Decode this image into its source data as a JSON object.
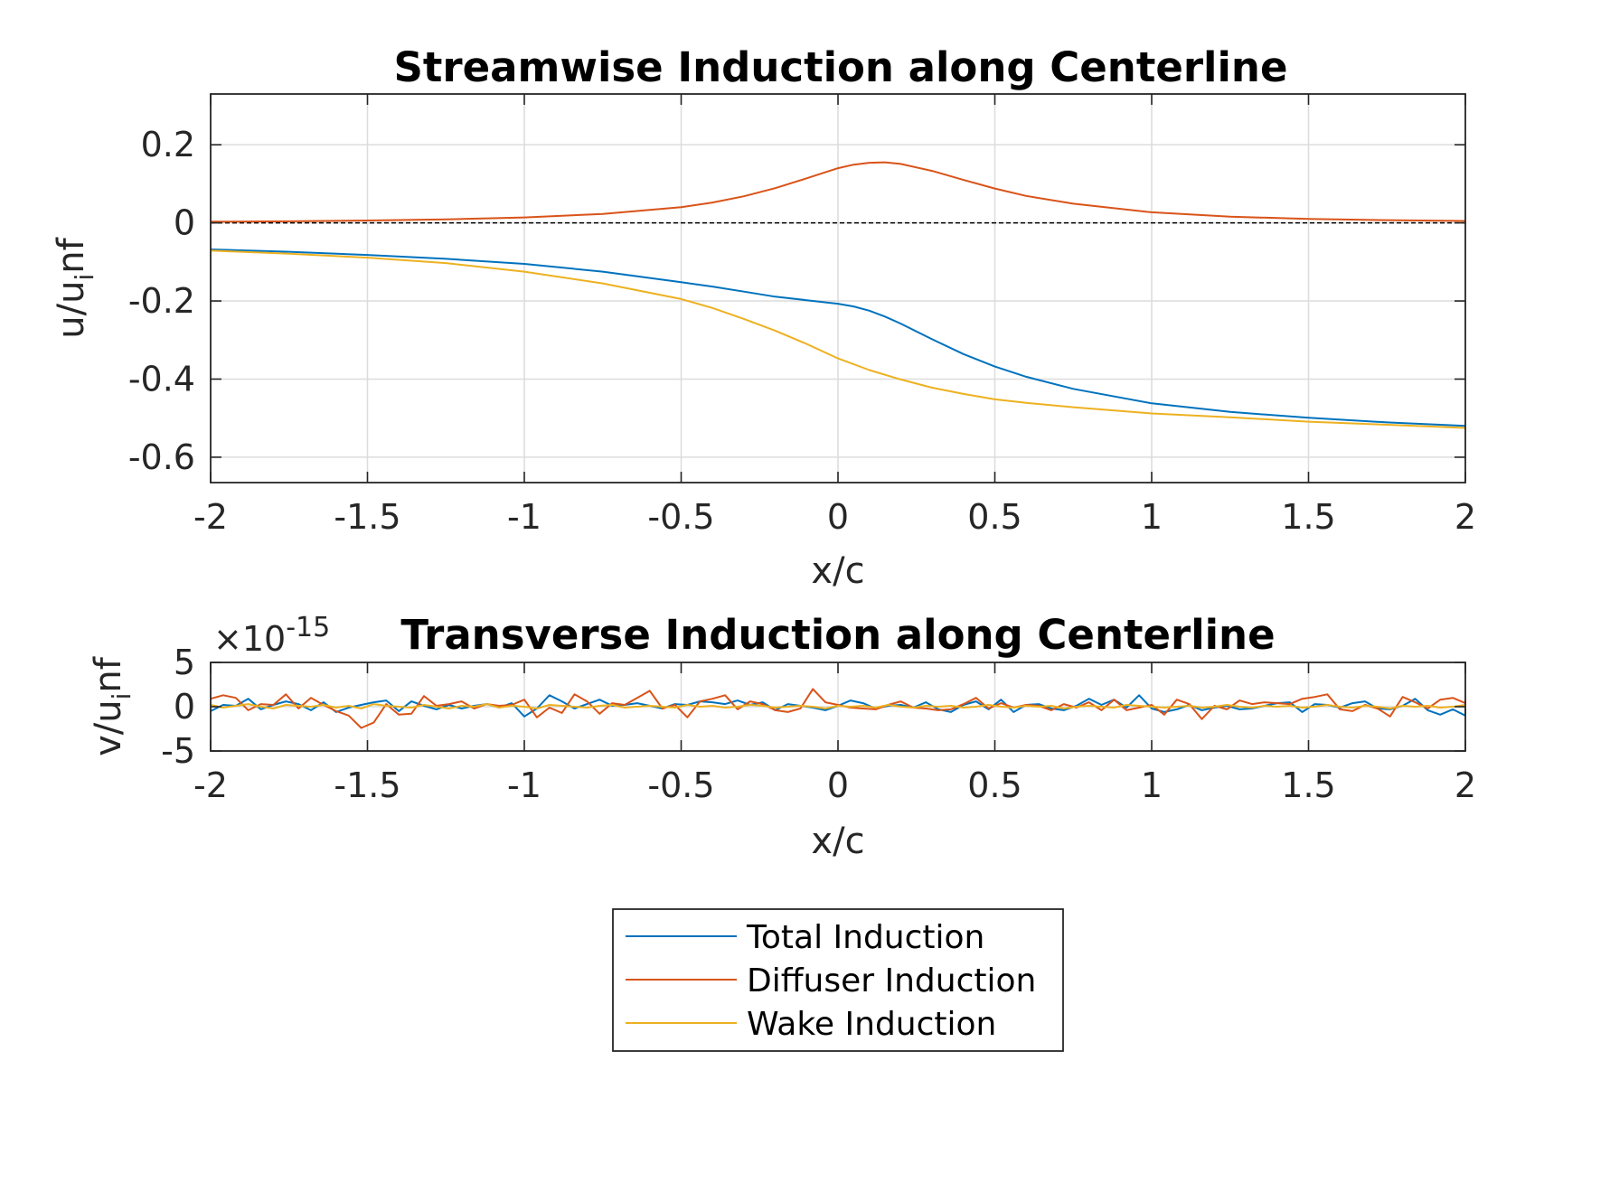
{
  "colors": {
    "total": "#0072BD",
    "diffuser": "#D95319",
    "wake": "#EDB120",
    "grid": "#DCDCDC",
    "axes": "#262626"
  },
  "legend": {
    "placement": "bottom-center",
    "entries": [
      "Total Induction",
      "Diffuser Induction",
      "Wake Induction"
    ]
  },
  "chart_data": [
    {
      "type": "line",
      "title": "Streamwise Induction along Centerline",
      "xlabel": "x/c",
      "ylabel_main": "u/u",
      "ylabel_sub": "i",
      "ylabel_end": "nf",
      "xlim": [
        -2,
        2
      ],
      "ylim": [
        -0.665,
        0.33
      ],
      "xticks": [
        -2,
        -1.5,
        -1,
        -0.5,
        0,
        0.5,
        1,
        1.5,
        2
      ],
      "xtick_labels": [
        "-2",
        "-1.5",
        "-1",
        "-0.5",
        "0",
        "0.5",
        "1",
        "1.5",
        "2"
      ],
      "yticks": [
        -0.6,
        -0.4,
        -0.2,
        0,
        0.2
      ],
      "ytick_labels": [
        "-0.6",
        "-0.4",
        "-0.2",
        "0",
        "0.2"
      ],
      "grid": true,
      "reference_line": 0,
      "series": [
        {
          "name": "Total Induction",
          "color_key": "total",
          "x": [
            -2,
            -1.75,
            -1.5,
            -1.25,
            -1,
            -0.75,
            -0.5,
            -0.4,
            -0.3,
            -0.2,
            -0.1,
            0,
            0.05,
            0.1,
            0.15,
            0.2,
            0.3,
            0.4,
            0.5,
            0.6,
            0.75,
            1,
            1.25,
            1.5,
            1.75,
            2
          ],
          "y": [
            -0.068,
            -0.074,
            -0.082,
            -0.092,
            -0.105,
            -0.125,
            -0.152,
            -0.163,
            -0.176,
            -0.189,
            -0.198,
            -0.207,
            -0.214,
            -0.225,
            -0.24,
            -0.258,
            -0.298,
            -0.336,
            -0.368,
            -0.394,
            -0.425,
            -0.462,
            -0.484,
            -0.499,
            -0.511,
            -0.52
          ]
        },
        {
          "name": "Diffuser Induction",
          "color_key": "diffuser",
          "x": [
            -2,
            -1.75,
            -1.5,
            -1.25,
            -1,
            -0.75,
            -0.5,
            -0.4,
            -0.3,
            -0.2,
            -0.1,
            0,
            0.05,
            0.1,
            0.15,
            0.2,
            0.3,
            0.4,
            0.5,
            0.6,
            0.75,
            1,
            1.25,
            1.5,
            1.75,
            2
          ],
          "y": [
            0.003,
            0.004,
            0.006,
            0.009,
            0.014,
            0.023,
            0.04,
            0.052,
            0.068,
            0.089,
            0.114,
            0.14,
            0.149,
            0.154,
            0.155,
            0.151,
            0.133,
            0.11,
            0.088,
            0.069,
            0.049,
            0.027,
            0.016,
            0.01,
            0.007,
            0.005
          ]
        },
        {
          "name": "Wake Induction",
          "color_key": "wake",
          "x": [
            -2,
            -1.75,
            -1.5,
            -1.25,
            -1,
            -0.75,
            -0.5,
            -0.4,
            -0.3,
            -0.2,
            -0.1,
            0,
            0.1,
            0.2,
            0.3,
            0.4,
            0.5,
            0.6,
            0.75,
            1,
            1.25,
            1.5,
            1.75,
            2
          ],
          "y": [
            -0.071,
            -0.079,
            -0.089,
            -0.103,
            -0.125,
            -0.155,
            -0.195,
            -0.218,
            -0.246,
            -0.276,
            -0.31,
            -0.347,
            -0.377,
            -0.401,
            -0.422,
            -0.438,
            -0.452,
            -0.461,
            -0.472,
            -0.488,
            -0.498,
            -0.509,
            -0.517,
            -0.525
          ]
        }
      ]
    },
    {
      "type": "line",
      "title": "Transverse Induction along Centerline",
      "xlabel": "x/c",
      "ylabel_main": "v/u",
      "ylabel_sub": "i",
      "ylabel_end": "nf",
      "exponent_label": "×10",
      "exponent_power": "-15",
      "xlim": [
        -2,
        2
      ],
      "ylim": [
        -5,
        5
      ],
      "xticks": [
        -2,
        -1.5,
        -1,
        -0.5,
        0,
        0.5,
        1,
        1.5,
        2
      ],
      "xtick_labels": [
        "-2",
        "-1.5",
        "-1",
        "-0.5",
        "0",
        "0.5",
        "1",
        "1.5",
        "2"
      ],
      "yticks": [
        -5,
        0,
        5
      ],
      "ytick_labels": [
        "-5",
        "0",
        "5"
      ],
      "grid": true,
      "x_step": 0.04,
      "series": [
        {
          "name": "Total Induction",
          "color_key": "total",
          "y": [
            -0.5,
            0.2,
            0.1,
            0.9,
            -0.3,
            0.2,
            0.6,
            0.3,
            -0.4,
            0.5,
            -0.6,
            -0.1,
            0.2,
            0.5,
            0.7,
            -0.5,
            0.6,
            0.1,
            -0.3,
            0.2,
            -0.2,
            0.1,
            0.3,
            -0.1,
            0.4,
            -1.1,
            -0.2,
            1.3,
            0.6,
            -0.2,
            0.3,
            0.8,
            0.1,
            0.2,
            0.4,
            0.1,
            -0.2,
            0.3,
            0.2,
            0.6,
            0.5,
            0.3,
            0.7,
            0.2,
            0.5,
            -0.4,
            0.3,
            0.1,
            -0.1,
            -0.4,
            0.1,
            0.7,
            0.4,
            -0.2,
            0.1,
            0.2,
            -0.1,
            0.5,
            -0.3,
            -0.6,
            0.2,
            0.6,
            -0.3,
            0.8,
            -0.6,
            0.2,
            0.3,
            -0.2,
            -0.4,
            0.1,
            0.9,
            0.2,
            0.8,
            -0.1,
            1.3,
            -0.2,
            -0.6,
            -0.3,
            0.2,
            -0.4,
            -0.1,
            0.1,
            -0.3,
            -0.2,
            0.1,
            0.4,
            0.5,
            -0.6,
            0.3,
            0.2,
            -0.1,
            0.4,
            0.6,
            -0.2,
            -0.3,
            0.1,
            0.9,
            -0.4,
            -0.9,
            -0.3,
            -1.0,
            0.1,
            0.5,
            -0.1
          ]
        },
        {
          "name": "Diffuser Induction",
          "color_key": "diffuser",
          "y": [
            0.9,
            1.3,
            1.0,
            -0.4,
            0.3,
            0.2,
            1.4,
            -0.2,
            1.0,
            0.2,
            -0.5,
            -1.0,
            -2.4,
            -1.8,
            0.3,
            -0.9,
            -0.8,
            1.2,
            0.1,
            0.3,
            0.6,
            -0.2,
            0.3,
            0.1,
            0.2,
            0.8,
            -1.2,
            -0.1,
            -0.7,
            1.4,
            0.6,
            -0.8,
            0.4,
            0.2,
            1.0,
            1.8,
            -0.2,
            0.2,
            -1.2,
            0.6,
            0.9,
            1.3,
            -0.3,
            0.6,
            0.3,
            -0.4,
            -0.6,
            -0.2,
            2.0,
            0.5,
            0.2,
            -0.1,
            -0.2,
            -0.3,
            0.2,
            0.6,
            -0.1,
            -0.2,
            -0.4,
            -0.3,
            0.3,
            1.0,
            -0.2,
            0.4,
            -0.1,
            0.2,
            0.1,
            -0.4,
            0.3,
            -0.1,
            0.5,
            -0.4,
            0.8,
            -0.4,
            -0.1,
            0.2,
            -0.9,
            0.8,
            0.3,
            -1.4,
            0.1,
            -0.3,
            0.7,
            0.3,
            0.5,
            0.4,
            0.3,
            0.9,
            1.1,
            1.4,
            -0.3,
            -0.5,
            0.2,
            -0.2,
            -1.1,
            1.1,
            0.5,
            -0.2,
            0.8,
            1.0,
            0.4,
            -0.2,
            0.7,
            0.6
          ]
        },
        {
          "name": "Wake Induction",
          "color_key": "wake",
          "y": [
            0.2,
            -0.1,
            0.1,
            0.3,
            0.0,
            -0.2,
            0.2,
            0.1,
            0.0,
            0.2,
            -0.1,
            0.1,
            -0.2,
            0.3,
            0.1,
            0.0,
            -0.1,
            0.2,
            0.0,
            -0.2,
            0.1,
            0.0,
            0.3,
            -0.1,
            0.1,
            0.0,
            -0.2,
            0.2,
            0.1,
            0.0,
            -0.1,
            0.1,
            0.2,
            -0.1,
            0.0,
            0.1,
            0.0,
            -0.1,
            0.2,
            0.0,
            0.1,
            -0.1,
            0.0,
            0.2,
            0.1,
            -0.1,
            0.0,
            0.1,
            0.0,
            -0.2,
            0.1,
            0.0,
            0.1,
            -0.1,
            0.2,
            0.0,
            -0.1,
            0.1,
            0.0,
            0.1,
            -0.1,
            0.0,
            0.2,
            0.0,
            -0.1,
            0.1,
            0.0,
            0.1,
            -0.2,
            0.0,
            0.1,
            0.0,
            -0.1,
            0.2,
            0.1,
            0.0,
            -0.1,
            0.0,
            0.1,
            -0.1,
            0.0,
            0.2,
            0.0,
            -0.1,
            0.1,
            0.0,
            0.1,
            -0.1,
            0.0,
            0.2,
            0.0,
            -0.1,
            0.1,
            0.0,
            -0.2,
            0.1,
            0.0,
            0.1,
            -0.1,
            0.0,
            0.2,
            0.0,
            -0.1,
            0.1
          ]
        }
      ]
    }
  ]
}
